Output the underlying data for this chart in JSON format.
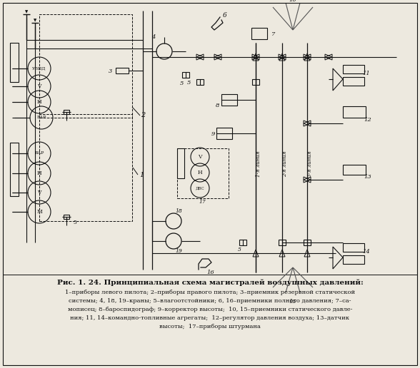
{
  "title": "Рис. 1. 24. Принципиальная схема магистралей воздушных давлений:",
  "cap1": "1–приборы левого пилота; 2–приборы правого пилота; 3–приемник резервной статической",
  "cap2": "системы; 4, 18, 19–краны; 5–влагоотстойники; 6, 16–приемники полного давления; 7–са-",
  "cap3": "мописец; 8–бароспидограф; 9–корректор высоты;  10, 15–приемники статического давле-",
  "cap4": "ния; 11, 14–командно-топливные агрегаты;  12–регулятор давления воздуха; 13–датчик",
  "cap5": "высоты;  17–приборы штурмана",
  "bg": "#ede9df",
  "lc": "#111111",
  "fw": 5.88,
  "fh": 5.16,
  "dpi": 100
}
